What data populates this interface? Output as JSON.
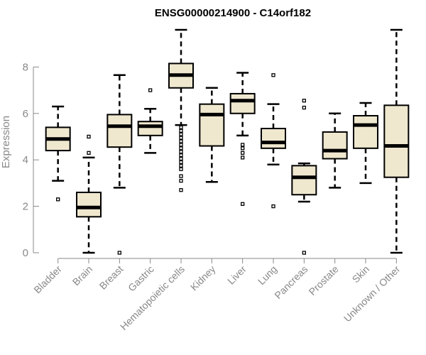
{
  "chart_data": {
    "type": "boxplot",
    "title": "ENSG00000214900 - C14orf182",
    "xlabel": "",
    "ylabel": "Expression",
    "ylim": [
      0,
      9.6
    ],
    "yticks": [
      0,
      2,
      4,
      6,
      8
    ],
    "box_fill": "#efe8cf",
    "categories": [
      "Bladder",
      "Brain",
      "Breast",
      "Gastric",
      "Hematopoietic cells",
      "Kidney",
      "Liver",
      "Lung",
      "Pancreas",
      "Prostate",
      "Skin",
      "Unknown / Other"
    ],
    "boxes": [
      {
        "whisker_low": 3.1,
        "q1": 4.4,
        "median": 4.9,
        "q3": 5.4,
        "whisker_high": 6.3,
        "outliers": [
          2.3
        ]
      },
      {
        "whisker_low": 0.0,
        "q1": 1.55,
        "median": 1.95,
        "q3": 2.6,
        "whisker_high": 4.1,
        "outliers": [
          4.3,
          5.0
        ]
      },
      {
        "whisker_low": 2.8,
        "q1": 4.55,
        "median": 5.45,
        "q3": 5.95,
        "whisker_high": 7.65,
        "outliers": [
          0.0
        ]
      },
      {
        "whisker_low": 4.3,
        "q1": 5.05,
        "median": 5.45,
        "q3": 5.65,
        "whisker_high": 6.2,
        "outliers": [
          7.0
        ]
      },
      {
        "whisker_low": 5.5,
        "q1": 7.1,
        "median": 7.65,
        "q3": 8.15,
        "whisker_high": 9.6,
        "outliers": [
          2.7,
          3.1,
          3.3,
          3.6,
          3.75,
          3.9,
          4.05,
          4.2,
          4.35,
          4.5,
          4.65,
          4.8,
          4.95,
          5.1,
          5.25,
          5.4
        ]
      },
      {
        "whisker_low": 3.05,
        "q1": 4.6,
        "median": 5.95,
        "q3": 6.4,
        "whisker_high": 7.1,
        "outliers": []
      },
      {
        "whisker_low": 5.05,
        "q1": 6.0,
        "median": 6.55,
        "q3": 6.85,
        "whisker_high": 7.75,
        "outliers": [
          2.1,
          4.1,
          4.3,
          4.5,
          4.65
        ]
      },
      {
        "whisker_low": 3.8,
        "q1": 4.5,
        "median": 4.75,
        "q3": 5.35,
        "whisker_high": 6.4,
        "outliers": [
          2.0,
          7.65
        ]
      },
      {
        "whisker_low": 2.2,
        "q1": 2.5,
        "median": 3.25,
        "q3": 3.75,
        "whisker_high": 3.85,
        "outliers": [
          0.0,
          6.25,
          6.55
        ]
      },
      {
        "whisker_low": 2.8,
        "q1": 4.05,
        "median": 4.4,
        "q3": 5.2,
        "whisker_high": 6.0,
        "outliers": []
      },
      {
        "whisker_low": 3.0,
        "q1": 4.5,
        "median": 5.5,
        "q3": 5.9,
        "whisker_high": 6.45,
        "outliers": []
      },
      {
        "whisker_low": 0.0,
        "q1": 3.25,
        "median": 4.6,
        "q3": 6.35,
        "whisker_high": 9.6,
        "outliers": []
      }
    ]
  }
}
